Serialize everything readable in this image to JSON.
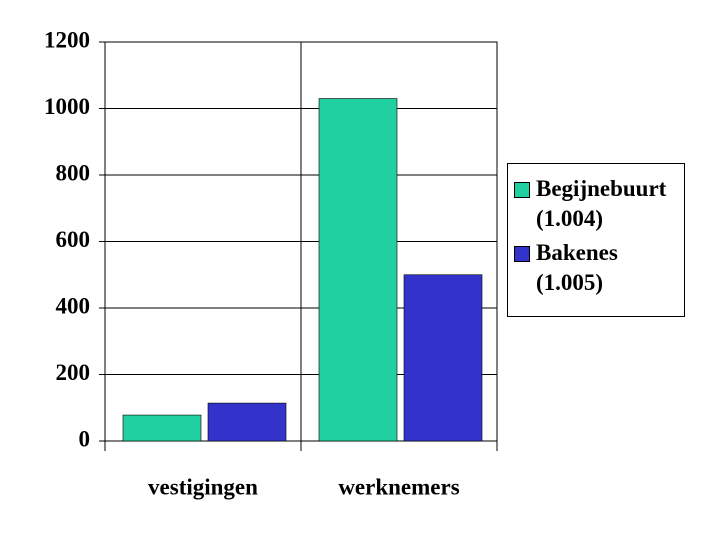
{
  "chart_data": {
    "type": "bar",
    "categories": [
      "vestigingen",
      "werknemers"
    ],
    "series": [
      {
        "name": "Begijnebuurt (1.004)",
        "color": "#20d0a0",
        "values": [
          78,
          1030
        ]
      },
      {
        "name": "Bakenes (1.005)",
        "color": "#3333cc",
        "values": [
          114,
          500
        ]
      }
    ],
    "ylim": [
      0,
      1200
    ],
    "yticks": [
      0,
      200,
      400,
      600,
      800,
      1000,
      1200
    ],
    "grid": true,
    "legend": "right"
  }
}
